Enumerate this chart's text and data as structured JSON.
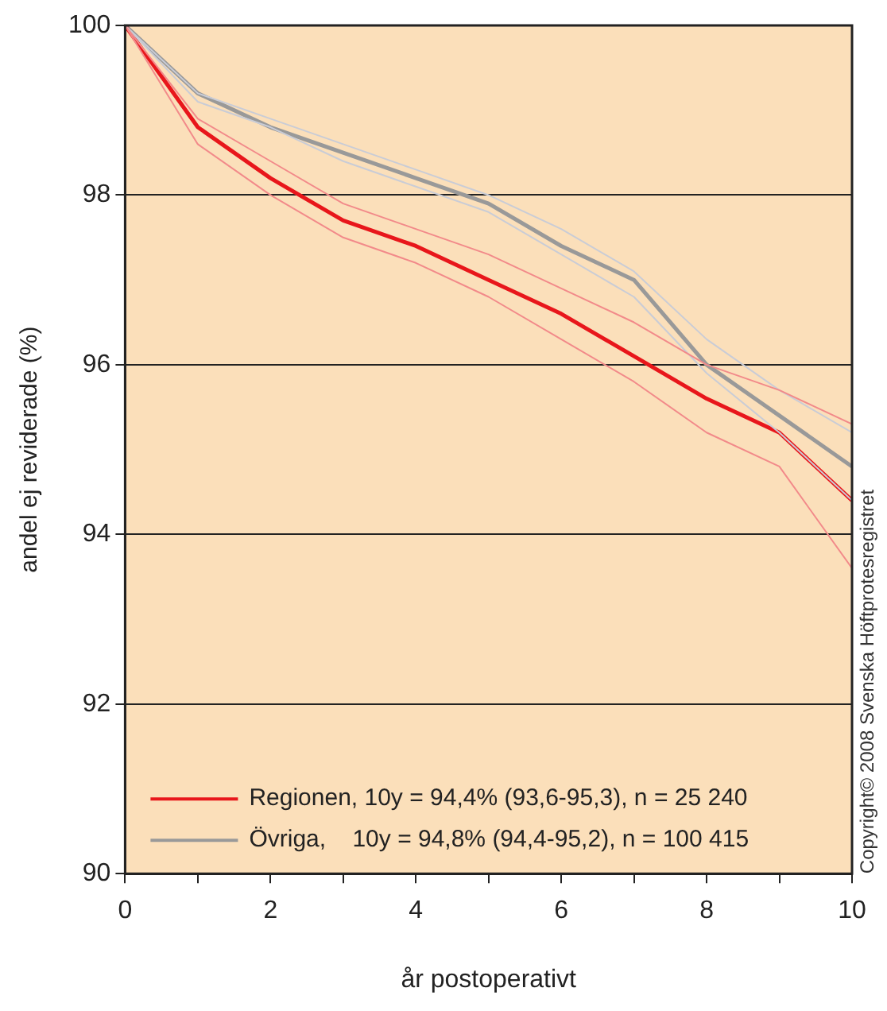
{
  "chart_data": {
    "type": "line",
    "xlabel": "år postoperativt",
    "ylabel": "andel ej reviderade (%)",
    "x": [
      0,
      1,
      2,
      3,
      4,
      5,
      6,
      7,
      8,
      9,
      10
    ],
    "series": [
      {
        "color": "#f28a8a",
        "values": [
          100,
          98.6,
          98.0,
          97.5,
          97.2,
          96.8,
          96.3,
          95.8,
          95.2,
          94.8,
          93.6
        ]
      },
      {
        "color": "#f28a8a",
        "values": [
          100,
          98.9,
          98.4,
          97.9,
          97.6,
          97.3,
          96.9,
          96.5,
          96.0,
          95.7,
          95.3
        ]
      },
      {
        "color": "#c9ccd6",
        "values": [
          100,
          99.1,
          98.8,
          98.4,
          98.1,
          97.8,
          97.3,
          96.8,
          95.9,
          95.2,
          94.4
        ]
      },
      {
        "color": "#c9ccd6",
        "values": [
          100,
          99.2,
          98.9,
          98.6,
          98.3,
          98.0,
          97.6,
          97.1,
          96.3,
          95.7,
          95.2
        ]
      },
      {
        "name": "Regionen, 10y = 94,4% (93,6-95,3), n = 25 240",
        "color": "#e8161b",
        "values": [
          100,
          98.8,
          98.2,
          97.7,
          97.4,
          97.0,
          96.6,
          96.1,
          95.6,
          95.2,
          94.4
        ]
      },
      {
        "name": "Övriga,    10y = 94,8% (94,4-95,2), n = 100 415",
        "color": "#999999",
        "values": [
          100,
          99.2,
          98.8,
          98.5,
          98.2,
          97.9,
          97.4,
          97.0,
          96.0,
          95.4,
          94.8
        ]
      }
    ],
    "xlim": [
      0,
      10
    ],
    "xticks": [
      0,
      {
        "value": 1,
        "label": null
      },
      2,
      {
        "value": 3,
        "label": null
      },
      4,
      {
        "value": 5,
        "label": null
      },
      6,
      {
        "value": 7,
        "label": null
      },
      8,
      {
        "value": 9,
        "label": null
      },
      10
    ],
    "ylim": [
      90,
      100
    ],
    "yticks": [
      90,
      92,
      94,
      96,
      98,
      100
    ],
    "grid": "y",
    "legend": "bottom left",
    "marker": "none",
    "line_style": "solid",
    "annotations": [
      "Copyright© 2008 Svenska Höftprotesregistret"
    ]
  }
}
